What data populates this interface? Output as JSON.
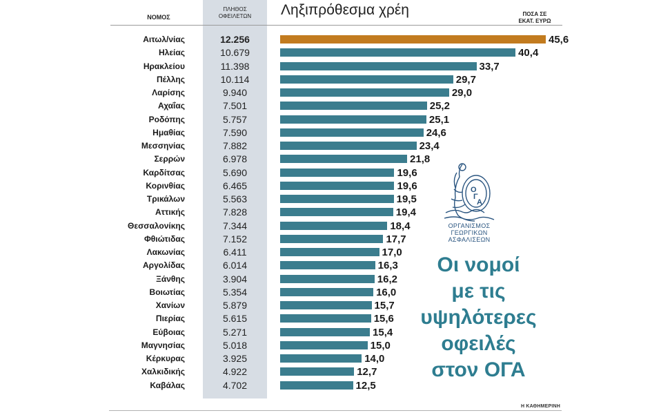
{
  "header": {
    "region_col": "ΝΟΜΟΣ",
    "count_col_line1": "ΠΛΗΘΟΣ",
    "count_col_line2": "ΟΦΕΙΛΕΤΩΝ",
    "title": "Ληξιπρόθεσμα χρέη",
    "amount_col_line1": "ΠΟΣΑ ΣΕ",
    "amount_col_line2": "ΕΚΑΤ. ΕΥΡΩ"
  },
  "logo_text": {
    "line1": "ΟΡΓΑΝΙΣΜΟΣ",
    "line2": "ΓΕΩΡΓΙΚΩΝ",
    "line3": "ΑΣΦΑΛΙΣΕΩΝ"
  },
  "headline": {
    "line1": "Οι νομοί",
    "line2": "με τις",
    "line3": "υψηλότερες",
    "line4": "οφειλές",
    "line5": "στον ΟΓΑ"
  },
  "source": "Η ΚΑΘΗΜΕΡΙΝΗ",
  "colors": {
    "bar": "#3b7d8e",
    "highlight_bar": "#c27b1f",
    "count_column_bg": "#d7dde4",
    "headline": "#2e7d90"
  },
  "chart_data": {
    "type": "bar",
    "orientation": "horizontal",
    "title": "Ληξιπρόθεσμα χρέη",
    "unit_label": "ΠΟΣΑ ΣΕ ΕΚΑΤ. ΕΥΡΩ",
    "xlim": [
      0,
      45.6
    ],
    "highlighted_index": 0,
    "rows": [
      {
        "region": "Αιτωλ/νίας",
        "debtors": "12.256",
        "amount": 45.6,
        "label": "45,6"
      },
      {
        "region": "Ηλείας",
        "debtors": "10.679",
        "amount": 40.4,
        "label": "40,4"
      },
      {
        "region": "Ηρακλείου",
        "debtors": "11.398",
        "amount": 33.7,
        "label": "33,7"
      },
      {
        "region": "Πέλλης",
        "debtors": "10.114",
        "amount": 29.7,
        "label": "29,7"
      },
      {
        "region": "Λαρίσης",
        "debtors": "9.940",
        "amount": 29.0,
        "label": "29,0"
      },
      {
        "region": "Αχαΐας",
        "debtors": "7.501",
        "amount": 25.2,
        "label": "25,2"
      },
      {
        "region": "Ροδόπης",
        "debtors": "5.757",
        "amount": 25.1,
        "label": "25,1"
      },
      {
        "region": "Ημαθίας",
        "debtors": "7.590",
        "amount": 24.6,
        "label": "24,6"
      },
      {
        "region": "Μεσσηνίας",
        "debtors": "7.882",
        "amount": 23.4,
        "label": "23,4"
      },
      {
        "region": "Σερρών",
        "debtors": "6.978",
        "amount": 21.8,
        "label": "21,8"
      },
      {
        "region": "Καρδίτσας",
        "debtors": "5.690",
        "amount": 19.6,
        "label": "19,6"
      },
      {
        "region": "Κορινθίας",
        "debtors": "6.465",
        "amount": 19.6,
        "label": "19,6"
      },
      {
        "region": "Τρικάλων",
        "debtors": "5.563",
        "amount": 19.5,
        "label": "19,5"
      },
      {
        "region": "Αττικής",
        "debtors": "7.828",
        "amount": 19.4,
        "label": "19,4"
      },
      {
        "region": "Θεσσαλονίκης",
        "debtors": "7.344",
        "amount": 18.4,
        "label": "18,4"
      },
      {
        "region": "Φθιώτιδας",
        "debtors": "7.152",
        "amount": 17.7,
        "label": "17,7"
      },
      {
        "region": "Λακωνίας",
        "debtors": "6.411",
        "amount": 17.0,
        "label": "17,0"
      },
      {
        "region": "Αργολίδας",
        "debtors": "6.014",
        "amount": 16.3,
        "label": "16,3"
      },
      {
        "region": "Ξάνθης",
        "debtors": "3.904",
        "amount": 16.2,
        "label": "16,2"
      },
      {
        "region": "Βοιωτίας",
        "debtors": "5.354",
        "amount": 16.0,
        "label": "16,0"
      },
      {
        "region": "Χανίων",
        "debtors": "5.879",
        "amount": 15.7,
        "label": "15,7"
      },
      {
        "region": "Πιερίας",
        "debtors": "5.615",
        "amount": 15.6,
        "label": "15,6"
      },
      {
        "region": "Εύβοιας",
        "debtors": "5.271",
        "amount": 15.4,
        "label": "15,4"
      },
      {
        "region": "Μαγνησίας",
        "debtors": "5.018",
        "amount": 15.0,
        "label": "15,0"
      },
      {
        "region": "Κέρκυρας",
        "debtors": "3.925",
        "amount": 14.0,
        "label": "14,0"
      },
      {
        "region": "Χαλκιδικής",
        "debtors": "4.922",
        "amount": 12.7,
        "label": "12,7"
      },
      {
        "region": "Καβάλας",
        "debtors": "4.702",
        "amount": 12.5,
        "label": "12,5"
      }
    ]
  }
}
